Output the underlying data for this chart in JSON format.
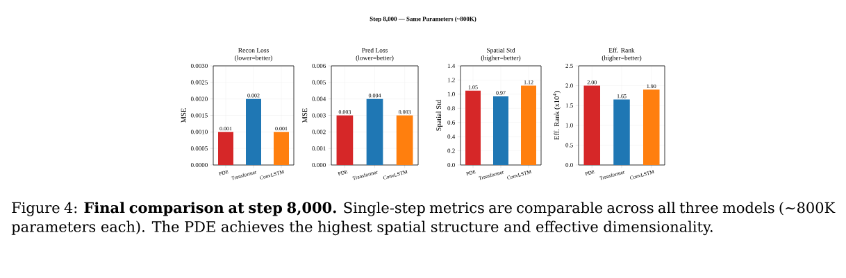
{
  "chart_data": [
    {
      "type": "bar",
      "title": "Recon Loss",
      "subtitle": "(lower=better)",
      "ylabel": "MSE",
      "categories": [
        "PDE",
        "Transformer",
        "ConvLSTM"
      ],
      "values": [
        0.001,
        0.002,
        0.001
      ],
      "colors": [
        "#d62728",
        "#1f77b4",
        "#ff7f0e"
      ],
      "value_labels": [
        "0.001",
        "0.002",
        "0.001"
      ],
      "ylim": [
        0,
        0.003
      ],
      "yticks": [
        {
          "value": 0,
          "label": "0.0000"
        },
        {
          "value": 0.0005,
          "label": "0.0005"
        },
        {
          "value": 0.001,
          "label": "0.0010"
        },
        {
          "value": 0.0015,
          "label": "0.0015"
        },
        {
          "value": 0.002,
          "label": "0.0020"
        },
        {
          "value": 0.0025,
          "label": "0.0025"
        },
        {
          "value": 0.003,
          "label": "0.0030"
        }
      ],
      "grid": true
    },
    {
      "type": "bar",
      "title": "Pred Loss",
      "subtitle": "(lower=better)",
      "ylabel": "MSE",
      "categories": [
        "PDE",
        "Transformer",
        "ConvLSTM"
      ],
      "values": [
        0.003,
        0.004,
        0.003
      ],
      "colors": [
        "#d62728",
        "#1f77b4",
        "#ff7f0e"
      ],
      "value_labels": [
        "0.003",
        "0.004",
        "0.003"
      ],
      "ylim": [
        0,
        0.006
      ],
      "yticks": [
        {
          "value": 0,
          "label": "0.000"
        },
        0.001,
        0.002,
        0.003,
        0.004,
        0.005,
        0.006
      ],
      "grid": true
    },
    {
      "type": "bar",
      "title": "Spatial Std",
      "subtitle": "(higher=better)",
      "ylabel": "Spatial Std",
      "categories": [
        "PDE",
        "Transformer",
        "ConvLSTM"
      ],
      "values": [
        1.05,
        0.97,
        1.12
      ],
      "colors": [
        "#d62728",
        "#1f77b4",
        "#ff7f0e"
      ],
      "value_labels": [
        "1.05",
        "0.97",
        "1.12"
      ],
      "ylim": [
        0,
        1.4
      ],
      "yticks": [
        {
          "value": 0,
          "label": "0.0"
        },
        0.2,
        0.4,
        0.6,
        0.8,
        {
          "value": 1,
          "label": "1.0"
        },
        1.2,
        1.4
      ],
      "grid": true
    },
    {
      "type": "bar",
      "title": "Eff. Rank",
      "subtitle": "(higher=better)",
      "ylabel": "Eff. Rank (x10$^{4}$)",
      "categories": [
        "PDE",
        "Transformer",
        "ConvLSTM"
      ],
      "values": [
        2.0,
        1.65,
        1.9
      ],
      "colors": [
        "#d62728",
        "#1f77b4",
        "#ff7f0e"
      ],
      "value_labels": [
        "2.00",
        "1.65",
        "1.90"
      ],
      "ylim": [
        0,
        2.5
      ],
      "yticks": [
        {
          "value": 0,
          "label": "0.0"
        },
        0.5,
        {
          "value": 1,
          "label": "1.0"
        },
        1.5,
        {
          "value": 2,
          "label": "2.0"
        },
        2.5
      ],
      "grid": true
    },
    {
      "type": "other",
      "title": "Step 8,000 — Same Parameters (~800K)",
      "annotations": [
        "Figure 4: **Final comparison at step 8,000.** Single-step metrics are comparable across all three models (∼800K parameters each). The PDE achieves the highest spatial structure and effective dimensionality."
      ]
    }
  ]
}
